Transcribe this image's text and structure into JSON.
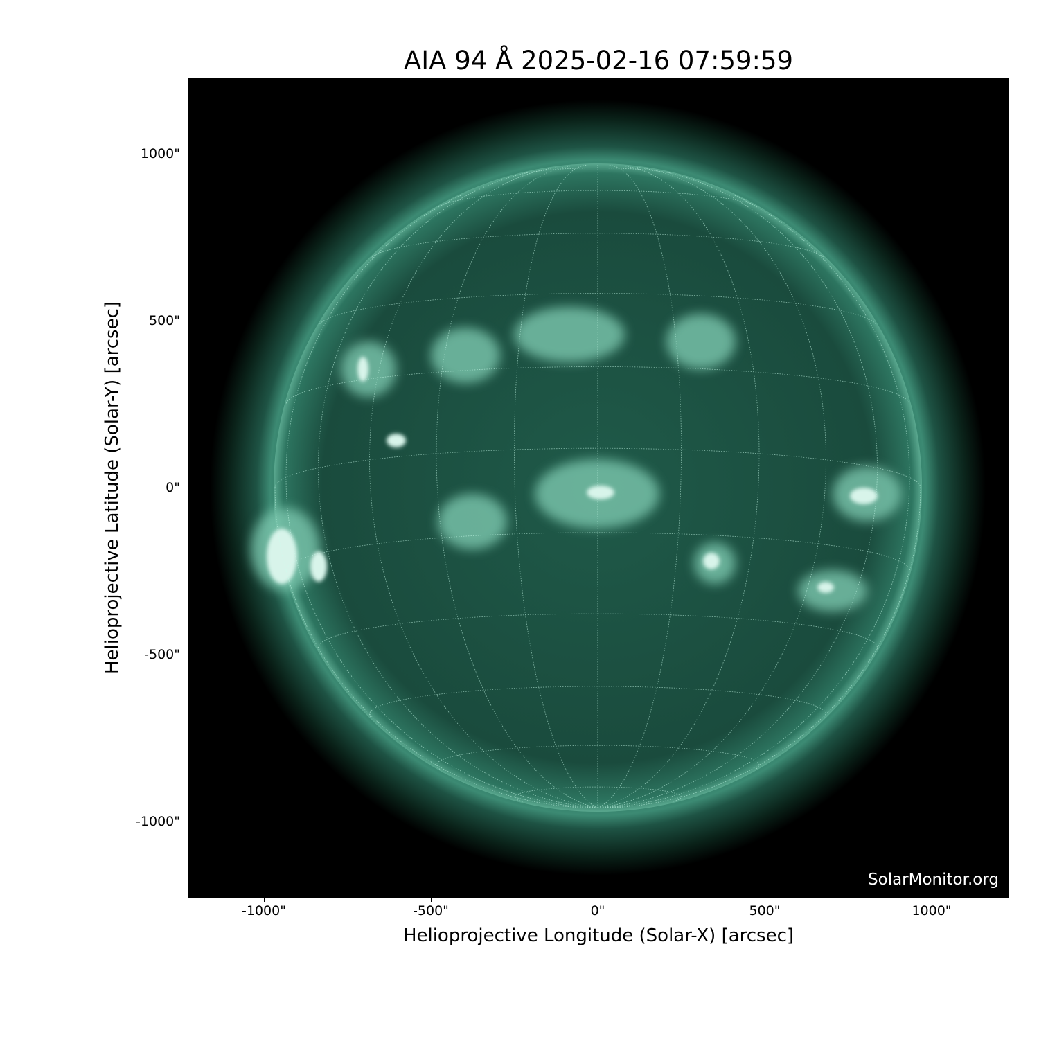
{
  "title": "AIA 94 Å 2025-02-16 07:59:59",
  "xlabel": "Helioprojective Longitude (Solar-X) [arcsec]",
  "ylabel": "Helioprojective Latitude (Solar-Y) [arcsec]",
  "watermark": "SolarMonitor.org",
  "x_ticks": [
    "-1000\"",
    "-500\"",
    "0\"",
    "500\"",
    "1000\""
  ],
  "y_ticks": [
    "1000\"",
    "500\"",
    "0\"",
    "-500\"",
    "-1000\""
  ],
  "colors": {
    "background": "#000000",
    "disk": "#1d5646",
    "bright": "#d8f4ea"
  }
}
